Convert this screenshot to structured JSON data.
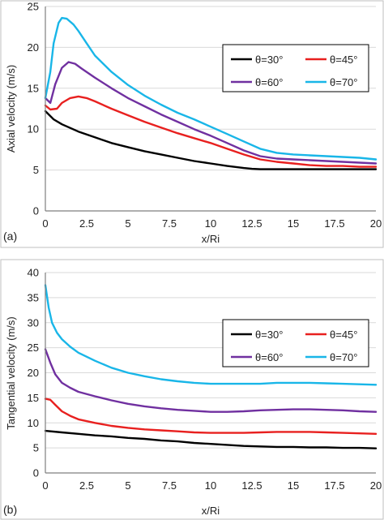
{
  "chart_data": [
    {
      "type": "line",
      "panel_label": "(a)",
      "xlabel": "x/Ri",
      "ylabel": "Axial velocity (m/s)",
      "xlim": [
        0,
        20
      ],
      "ylim": [
        0,
        25
      ],
      "xticks": [
        "0",
        "2.5",
        "5",
        "7.5",
        "10",
        "12.5",
        "15",
        "17.5",
        "20"
      ],
      "yticks": [
        "0",
        "5",
        "10",
        "15",
        "20",
        "25"
      ],
      "grid": "horizontal",
      "legend_position": "top-right",
      "series": [
        {
          "name": "θ=30°",
          "color": "#000000",
          "x": [
            0,
            0.5,
            1,
            2,
            3,
            4,
            5,
            6,
            7,
            8,
            9,
            10,
            11,
            12,
            12.5,
            13,
            14,
            15,
            16,
            17,
            18,
            19,
            20
          ],
          "y": [
            12.2,
            11.2,
            10.6,
            9.7,
            9.0,
            8.3,
            7.8,
            7.3,
            6.9,
            6.5,
            6.1,
            5.8,
            5.5,
            5.25,
            5.15,
            5.1,
            5.1,
            5.1,
            5.1,
            5.1,
            5.1,
            5.1,
            5.1
          ]
        },
        {
          "name": "θ=45°",
          "color": "#e8201f",
          "x": [
            0,
            0.3,
            0.7,
            1,
            1.5,
            2,
            2.5,
            3,
            4,
            5,
            6,
            7,
            8,
            9,
            10,
            11,
            12,
            13,
            14,
            15,
            16,
            17,
            18,
            19,
            20
          ],
          "y": [
            12.9,
            12.4,
            12.5,
            13.2,
            13.8,
            14.0,
            13.8,
            13.4,
            12.5,
            11.7,
            10.9,
            10.2,
            9.5,
            8.9,
            8.3,
            7.6,
            6.9,
            6.3,
            6.0,
            5.8,
            5.6,
            5.5,
            5.5,
            5.4,
            5.4
          ]
        },
        {
          "name": "θ=60°",
          "color": "#7030a0",
          "x": [
            0,
            0.3,
            0.6,
            1,
            1.4,
            1.8,
            2.2,
            3,
            4,
            5,
            6,
            7,
            8,
            9,
            10,
            11,
            12,
            13,
            14,
            15,
            16,
            17,
            18,
            19,
            20
          ],
          "y": [
            13.8,
            13.2,
            15.5,
            17.5,
            18.2,
            18.0,
            17.4,
            16.3,
            15.0,
            13.8,
            12.8,
            11.8,
            10.9,
            10.0,
            9.2,
            8.3,
            7.4,
            6.7,
            6.4,
            6.3,
            6.2,
            6.1,
            6.0,
            5.9,
            5.8
          ]
        },
        {
          "name": "θ=70°",
          "color": "#19b6e8",
          "x": [
            0,
            0.3,
            0.5,
            0.8,
            1,
            1.3,
            1.7,
            2,
            2.5,
            3,
            4,
            5,
            6,
            7,
            8,
            9,
            10,
            11,
            12,
            13,
            14,
            15,
            16,
            17,
            18,
            19,
            20
          ],
          "y": [
            13.8,
            17.0,
            20.5,
            23.0,
            23.6,
            23.5,
            22.8,
            22.0,
            20.5,
            19.0,
            17.0,
            15.4,
            14.1,
            13.0,
            12.0,
            11.2,
            10.3,
            9.4,
            8.5,
            7.6,
            7.1,
            6.9,
            6.8,
            6.7,
            6.6,
            6.5,
            6.3
          ]
        }
      ]
    },
    {
      "type": "line",
      "panel_label": "(b)",
      "xlabel": "x/Ri",
      "ylabel": "Tangential velocity (m/s)",
      "xlim": [
        0,
        20
      ],
      "ylim": [
        0,
        40
      ],
      "xticks": [
        "0",
        "2.5",
        "5",
        "7.5",
        "10",
        "12.5",
        "15",
        "17.5",
        "20"
      ],
      "yticks": [
        "0",
        "5",
        "10",
        "15",
        "20",
        "25",
        "30",
        "35",
        "40"
      ],
      "grid": "horizontal",
      "legend_position": "top-right",
      "series": [
        {
          "name": "θ=30°",
          "color": "#000000",
          "x": [
            0,
            1,
            2,
            3,
            4,
            5,
            6,
            7,
            8,
            9,
            10,
            11,
            12,
            13,
            14,
            15,
            16,
            17,
            18,
            19,
            20
          ],
          "y": [
            8.4,
            8.1,
            7.8,
            7.5,
            7.3,
            7.0,
            6.8,
            6.5,
            6.3,
            6.0,
            5.8,
            5.6,
            5.4,
            5.3,
            5.2,
            5.2,
            5.1,
            5.1,
            5.0,
            5.0,
            4.9
          ]
        },
        {
          "name": "θ=45°",
          "color": "#e8201f",
          "x": [
            0,
            0.3,
            0.6,
            1,
            1.5,
            2,
            3,
            4,
            5,
            6,
            7,
            8,
            9,
            10,
            11,
            12,
            13,
            14,
            15,
            16,
            17,
            18,
            19,
            20
          ],
          "y": [
            14.8,
            14.6,
            13.6,
            12.3,
            11.4,
            10.7,
            10.0,
            9.4,
            9.0,
            8.7,
            8.5,
            8.3,
            8.1,
            8.0,
            8.0,
            8.0,
            8.1,
            8.2,
            8.2,
            8.2,
            8.1,
            8.0,
            7.9,
            7.8
          ]
        },
        {
          "name": "θ=60°",
          "color": "#7030a0",
          "x": [
            0,
            0.3,
            0.6,
            1,
            1.5,
            2,
            3,
            4,
            5,
            6,
            7,
            8,
            9,
            10,
            11,
            12,
            13,
            14,
            15,
            16,
            17,
            18,
            19,
            20
          ],
          "y": [
            24.7,
            22.0,
            19.7,
            18.0,
            17.0,
            16.2,
            15.3,
            14.5,
            13.8,
            13.3,
            12.9,
            12.6,
            12.4,
            12.2,
            12.2,
            12.3,
            12.5,
            12.6,
            12.7,
            12.7,
            12.6,
            12.5,
            12.3,
            12.2
          ]
        },
        {
          "name": "θ=70°",
          "color": "#19b6e8",
          "x": [
            0,
            0.2,
            0.4,
            0.7,
            1,
            1.5,
            2,
            3,
            4,
            5,
            6,
            7,
            8,
            9,
            10,
            11,
            12,
            13,
            14,
            15,
            16,
            17,
            18,
            19,
            20
          ],
          "y": [
            37.5,
            33.0,
            30.0,
            28.0,
            26.7,
            25.2,
            24.0,
            22.4,
            21.0,
            20.0,
            19.3,
            18.7,
            18.3,
            18.0,
            17.8,
            17.8,
            17.8,
            17.8,
            18.0,
            18.0,
            18.0,
            17.9,
            17.8,
            17.7,
            17.6
          ]
        }
      ]
    }
  ]
}
